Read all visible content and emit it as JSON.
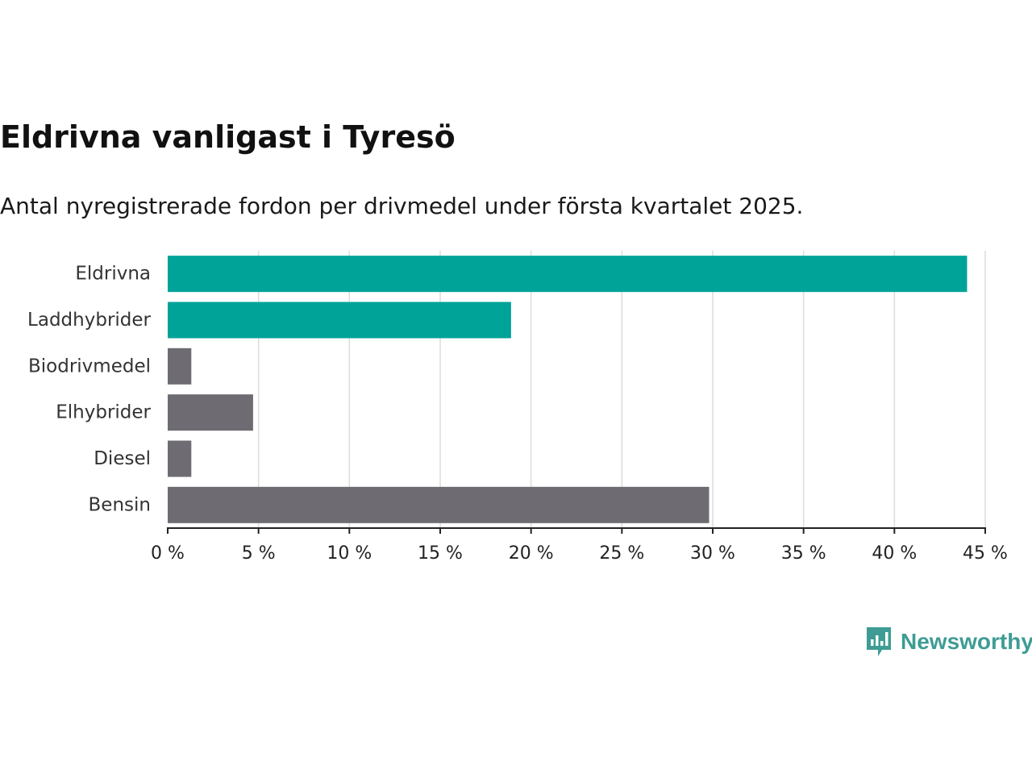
{
  "title": "Eldrivna vanligast i Tyresö",
  "subtitle": "Antal nyregistrerade fordon per drivmedel under första kvartalet 2025.",
  "brand": {
    "name": "Newsworthy",
    "icon": "newsworthy-logo-icon",
    "color": "#3e9c94"
  },
  "chart_data": {
    "type": "bar",
    "orientation": "horizontal",
    "title": "Eldrivna vanligast i Tyresö",
    "subtitle": "Antal nyregistrerade fordon per drivmedel under första kvartalet 2025.",
    "categories": [
      "Eldrivna",
      "Laddhybrider",
      "Biodrivmedel",
      "Elhybrider",
      "Diesel",
      "Bensin"
    ],
    "values": [
      44.0,
      18.9,
      1.3,
      4.7,
      1.3,
      29.8
    ],
    "colors": [
      "#00a398",
      "#00a398",
      "#6e6c72",
      "#6e6c72",
      "#6e6c72",
      "#6e6c72"
    ],
    "unit": "%",
    "xlim": [
      0,
      45
    ],
    "x_ticks": [
      0,
      5,
      10,
      15,
      20,
      25,
      30,
      35,
      40,
      45
    ],
    "x_tick_labels": [
      "0 %",
      "5 %",
      "10 %",
      "15 %",
      "20 %",
      "25 %",
      "30 %",
      "35 %",
      "40 %",
      "45 %"
    ],
    "grid": true,
    "xlabel": "",
    "ylabel": ""
  }
}
